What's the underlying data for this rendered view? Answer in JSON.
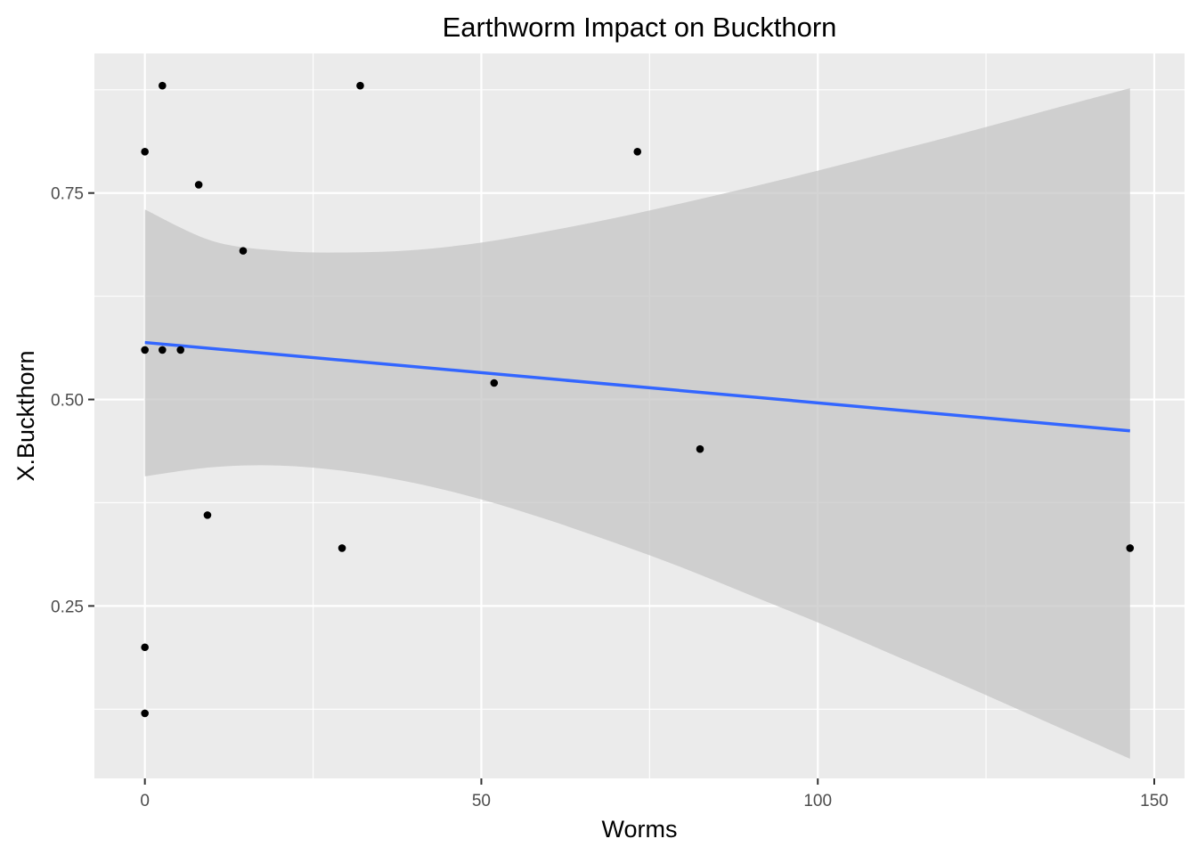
{
  "chart_data": {
    "type": "scatter",
    "title": "Earthworm Impact on Buckthorn",
    "xlabel": "Worms",
    "ylabel": "X.Buckthorn",
    "xlim": [
      -7.5,
      154.5
    ],
    "ylim": [
      0.0412,
      0.919
    ],
    "x_ticks": [
      0,
      50,
      100,
      150
    ],
    "x_tick_labels": [
      "0",
      "50",
      "100",
      "150"
    ],
    "y_ticks": [
      0.25,
      0.5,
      0.75
    ],
    "y_tick_labels": [
      "0.25",
      "0.50",
      "0.75"
    ],
    "grid": true,
    "legend": "none",
    "points": [
      {
        "x": 0,
        "y": 0.8
      },
      {
        "x": 0,
        "y": 0.56
      },
      {
        "x": 0,
        "y": 0.2
      },
      {
        "x": 0,
        "y": 0.12
      },
      {
        "x": 2.6,
        "y": 0.88
      },
      {
        "x": 2.6,
        "y": 0.56
      },
      {
        "x": 5.3,
        "y": 0.56
      },
      {
        "x": 8.0,
        "y": 0.76
      },
      {
        "x": 9.3,
        "y": 0.36
      },
      {
        "x": 14.6,
        "y": 0.68
      },
      {
        "x": 29.3,
        "y": 0.32
      },
      {
        "x": 32.0,
        "y": 0.88
      },
      {
        "x": 51.9,
        "y": 0.52
      },
      {
        "x": 73.2,
        "y": 0.8
      },
      {
        "x": 82.5,
        "y": 0.44
      },
      {
        "x": 146.4,
        "y": 0.32
      }
    ],
    "fit_line": {
      "x": [
        0,
        146.4
      ],
      "y": [
        0.569,
        0.462
      ]
    },
    "confidence_band": {
      "x": [
        0,
        10,
        20,
        30,
        40,
        50,
        60,
        70,
        80,
        90,
        100,
        110,
        120,
        130,
        140,
        146.4
      ],
      "upper": [
        0.73,
        0.692,
        0.68,
        0.678,
        0.681,
        0.69,
        0.704,
        0.72,
        0.738,
        0.757,
        0.777,
        0.798,
        0.819,
        0.841,
        0.863,
        0.877
      ],
      "lower": [
        0.407,
        0.418,
        0.42,
        0.413,
        0.399,
        0.379,
        0.354,
        0.326,
        0.296,
        0.263,
        0.23,
        0.195,
        0.16,
        0.124,
        0.088,
        0.065
      ]
    },
    "colors": {
      "panel": "#ebebeb",
      "grid": "#ffffff",
      "points": "#000000",
      "line": "#3366ff",
      "band": "#c3c3c3"
    }
  }
}
